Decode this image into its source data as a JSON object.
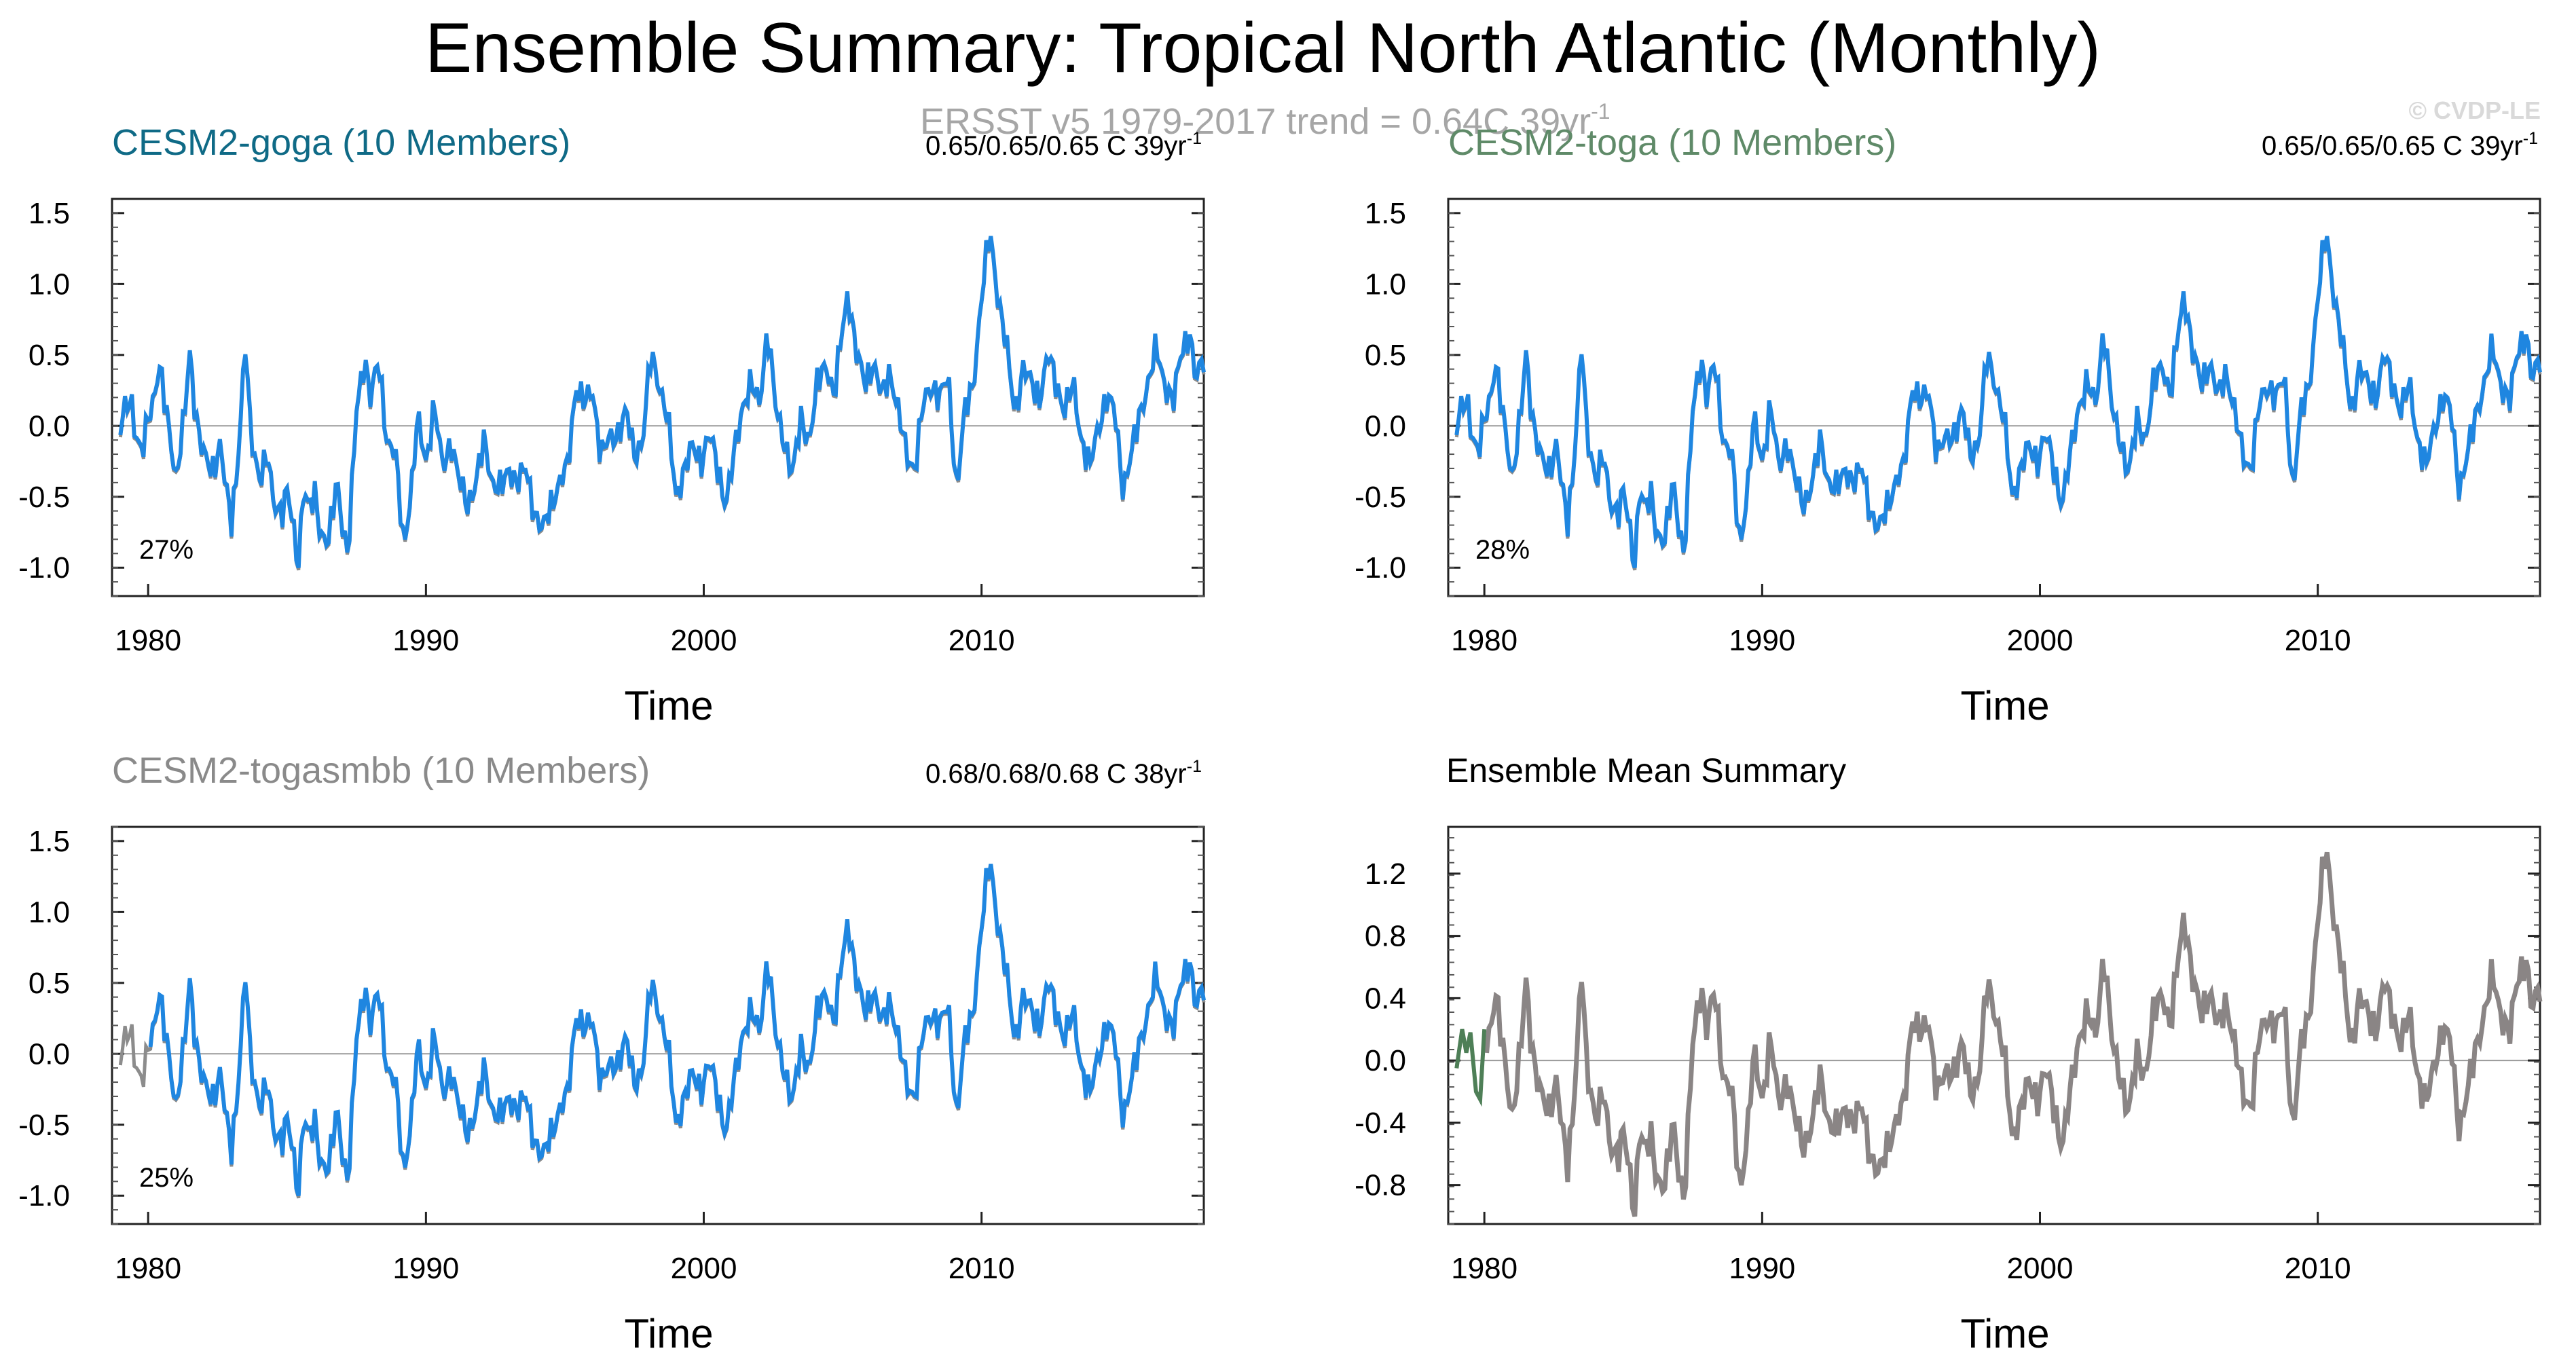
{
  "title": "Ensemble Summary: Tropical North Atlantic (Monthly)",
  "obs_label": "ERSST v5 1979-2017 trend = 0.64C 39yr",
  "obs_label_sup": "-1",
  "copyright": "© CVDP-LE",
  "colors": {
    "member": "#1f86e0",
    "obs": "#8c8c8c",
    "goga": "#0f6a86",
    "toga": "#5f8a68",
    "togasmbb": "#8a8a8a",
    "mean_line": "#8a8585",
    "mean_start": "#4e7f57"
  },
  "chart_data": [
    {
      "type": "line",
      "title": "CESM2-goga (10 Members)",
      "stats": "0.65/0.65/0.65 C 39yr",
      "stats_sup": "-1",
      "percent": "27%",
      "xlabel": "Time",
      "ylabel": "",
      "xlim": [
        1978.7,
        2018.0
      ],
      "ylim": [
        -1.2,
        1.6
      ],
      "xticks": [
        1980,
        1990,
        2000,
        2010
      ],
      "yticks": [
        -1.0,
        -0.5,
        0.0,
        0.5,
        1.0,
        1.5
      ],
      "ytick_labels": [
        "-1.0",
        "-0.5",
        "0.0",
        "0.5",
        "1.0",
        "1.5"
      ],
      "series": [
        "obs",
        "ensemble-mean"
      ]
    },
    {
      "type": "line",
      "title": "CESM2-toga (10 Members)",
      "stats": "0.65/0.65/0.65 C 39yr",
      "stats_sup": "-1",
      "percent": "28%",
      "xlabel": "Time",
      "ylabel": "",
      "xlim": [
        1978.7,
        2018.0
      ],
      "ylim": [
        -1.2,
        1.6
      ],
      "xticks": [
        1980,
        1990,
        2000,
        2010
      ],
      "yticks": [
        -1.0,
        -0.5,
        0.0,
        0.5,
        1.0,
        1.5
      ],
      "ytick_labels": [
        "-1.0",
        "-0.5",
        "0.0",
        "0.5",
        "1.0",
        "1.5"
      ],
      "series": [
        "obs",
        "ensemble-mean"
      ]
    },
    {
      "type": "line",
      "title": "CESM2-togasmbb (10 Members)",
      "stats": "0.68/0.68/0.68 C 38yr",
      "stats_sup": "-1",
      "percent": "25%",
      "xlabel": "Time",
      "ylabel": "",
      "xlim": [
        1978.7,
        2018.0
      ],
      "ylim": [
        -1.2,
        1.6
      ],
      "xticks": [
        1980,
        1990,
        2000,
        2010
      ],
      "yticks": [
        -1.0,
        -0.5,
        0.0,
        0.5,
        1.0,
        1.5
      ],
      "ytick_labels": [
        "-1.0",
        "-0.5",
        "0.0",
        "0.5",
        "1.0",
        "1.5"
      ],
      "series": [
        "obs",
        "ensemble-mean"
      ],
      "member_start": 1980.0
    },
    {
      "type": "line",
      "title": "Ensemble Mean Summary",
      "stats": "",
      "stats_sup": "",
      "percent": "",
      "xlabel": "Time",
      "ylabel": "",
      "xlim": [
        1978.7,
        2018.0
      ],
      "ylim": [
        -1.05,
        1.5
      ],
      "xticks": [
        1980,
        1990,
        2000,
        2010
      ],
      "yticks": [
        -0.8,
        -0.4,
        0.0,
        0.4,
        0.8,
        1.2
      ],
      "ytick_labels": [
        "-0.8",
        "-0.4",
        "0.0",
        "0.4",
        "0.8",
        "1.2"
      ],
      "series": [
        "goga",
        "toga",
        "togasmbb"
      ]
    }
  ],
  "timeseries": {
    "start": 1979.0,
    "end": 2018.0,
    "anchors": [
      [
        1979.0,
        -0.05
      ],
      [
        1979.2,
        0.15
      ],
      [
        1979.4,
        0.18
      ],
      [
        1979.6,
        -0.1
      ],
      [
        1979.8,
        -0.2
      ],
      [
        1980.0,
        0.05
      ],
      [
        1980.2,
        0.2
      ],
      [
        1980.4,
        0.45
      ],
      [
        1980.6,
        0.15
      ],
      [
        1980.8,
        -0.1
      ],
      [
        1981.0,
        -0.35
      ],
      [
        1981.3,
        0.05
      ],
      [
        1981.5,
        0.5
      ],
      [
        1981.7,
        0.1
      ],
      [
        1982.0,
        -0.2
      ],
      [
        1982.3,
        -0.35
      ],
      [
        1982.6,
        -0.1
      ],
      [
        1982.8,
        -0.45
      ],
      [
        1983.0,
        -0.7
      ],
      [
        1983.2,
        -0.3
      ],
      [
        1983.5,
        0.58
      ],
      [
        1983.7,
        -0.1
      ],
      [
        1984.0,
        -0.35
      ],
      [
        1984.3,
        -0.2
      ],
      [
        1984.5,
        -0.55
      ],
      [
        1984.8,
        -0.6
      ],
      [
        1985.0,
        -0.45
      ],
      [
        1985.2,
        -0.7
      ],
      [
        1985.4,
        -1.0
      ],
      [
        1985.6,
        -0.4
      ],
      [
        1985.8,
        -0.6
      ],
      [
        1986.0,
        -0.5
      ],
      [
        1986.2,
        -0.75
      ],
      [
        1986.5,
        -0.8
      ],
      [
        1986.8,
        -0.4
      ],
      [
        1987.0,
        -0.7
      ],
      [
        1987.2,
        -0.9
      ],
      [
        1987.5,
        0.1
      ],
      [
        1987.8,
        0.5
      ],
      [
        1988.0,
        0.2
      ],
      [
        1988.3,
        0.45
      ],
      [
        1988.6,
        -0.1
      ],
      [
        1988.9,
        -0.2
      ],
      [
        1989.2,
        -0.85
      ],
      [
        1989.5,
        -0.4
      ],
      [
        1989.7,
        0.05
      ],
      [
        1990.0,
        -0.25
      ],
      [
        1990.3,
        0.15
      ],
      [
        1990.6,
        -0.3
      ],
      [
        1990.9,
        -0.1
      ],
      [
        1991.2,
        -0.4
      ],
      [
        1991.5,
        -0.55
      ],
      [
        1991.8,
        -0.4
      ],
      [
        1992.1,
        -0.1
      ],
      [
        1992.4,
        -0.4
      ],
      [
        1992.7,
        -0.45
      ],
      [
        1993.0,
        -0.3
      ],
      [
        1993.3,
        -0.4
      ],
      [
        1993.6,
        -0.3
      ],
      [
        1993.9,
        -0.6
      ],
      [
        1994.2,
        -0.75
      ],
      [
        1994.5,
        -0.55
      ],
      [
        1994.8,
        -0.4
      ],
      [
        1995.1,
        -0.3
      ],
      [
        1995.4,
        0.3
      ],
      [
        1995.7,
        0.15
      ],
      [
        1996.0,
        0.25
      ],
      [
        1996.3,
        -0.2
      ],
      [
        1996.6,
        -0.1
      ],
      [
        1996.9,
        -0.05
      ],
      [
        1997.2,
        0.1
      ],
      [
        1997.5,
        -0.2
      ],
      [
        1997.8,
        -0.1
      ],
      [
        1998.1,
        0.5
      ],
      [
        1998.4,
        0.3
      ],
      [
        1998.7,
        0.05
      ],
      [
        1999.0,
        -0.5
      ],
      [
        1999.3,
        -0.3
      ],
      [
        1999.6,
        -0.15
      ],
      [
        1999.9,
        -0.25
      ],
      [
        2000.2,
        -0.05
      ],
      [
        2000.5,
        -0.3
      ],
      [
        2000.8,
        -0.55
      ],
      [
        2001.1,
        -0.2
      ],
      [
        2001.4,
        0.15
      ],
      [
        2001.7,
        0.3
      ],
      [
        2002.0,
        0.15
      ],
      [
        2002.3,
        0.7
      ],
      [
        2002.6,
        0.1
      ],
      [
        2002.9,
        -0.1
      ],
      [
        2003.2,
        -0.35
      ],
      [
        2003.5,
        0.05
      ],
      [
        2003.8,
        -0.1
      ],
      [
        2004.1,
        0.3
      ],
      [
        2004.4,
        0.45
      ],
      [
        2004.7,
        0.2
      ],
      [
        2005.0,
        0.7
      ],
      [
        2005.2,
        0.95
      ],
      [
        2005.5,
        0.5
      ],
      [
        2005.8,
        0.3
      ],
      [
        2006.1,
        0.45
      ],
      [
        2006.4,
        0.2
      ],
      [
        2006.7,
        0.4
      ],
      [
        2007.0,
        0.1
      ],
      [
        2007.3,
        -0.2
      ],
      [
        2007.6,
        -0.3
      ],
      [
        2007.9,
        0.15
      ],
      [
        2008.2,
        0.3
      ],
      [
        2008.5,
        0.2
      ],
      [
        2008.8,
        0.35
      ],
      [
        2009.1,
        -0.45
      ],
      [
        2009.4,
        0.1
      ],
      [
        2009.7,
        0.3
      ],
      [
        2010.0,
        0.9
      ],
      [
        2010.3,
        1.38
      ],
      [
        2010.6,
        0.9
      ],
      [
        2010.9,
        0.55
      ],
      [
        2011.2,
        0.1
      ],
      [
        2011.5,
        0.4
      ],
      [
        2011.8,
        0.3
      ],
      [
        2012.1,
        0.2
      ],
      [
        2012.4,
        0.5
      ],
      [
        2012.7,
        0.3
      ],
      [
        2013.0,
        0.1
      ],
      [
        2013.3,
        0.3
      ],
      [
        2013.6,
        -0.1
      ],
      [
        2013.9,
        -0.3
      ],
      [
        2014.2,
        0.0
      ],
      [
        2014.5,
        0.2
      ],
      [
        2014.8,
        0.1
      ],
      [
        2015.1,
        -0.45
      ],
      [
        2015.4,
        -0.2
      ],
      [
        2015.7,
        0.1
      ],
      [
        2016.0,
        0.3
      ],
      [
        2016.3,
        0.55
      ],
      [
        2016.6,
        0.3
      ],
      [
        2016.9,
        0.15
      ],
      [
        2017.2,
        0.55
      ],
      [
        2017.5,
        0.65
      ],
      [
        2017.7,
        0.3
      ],
      [
        2018.0,
        0.5
      ]
    ]
  },
  "mean_start_segment": [
    [
      1979.0,
      -0.05
    ],
    [
      1979.2,
      0.2
    ],
    [
      1979.35,
      0.05
    ],
    [
      1979.5,
      0.18
    ],
    [
      1979.7,
      -0.2
    ],
    [
      1979.85,
      -0.25
    ],
    [
      1980.0,
      0.2
    ]
  ]
}
